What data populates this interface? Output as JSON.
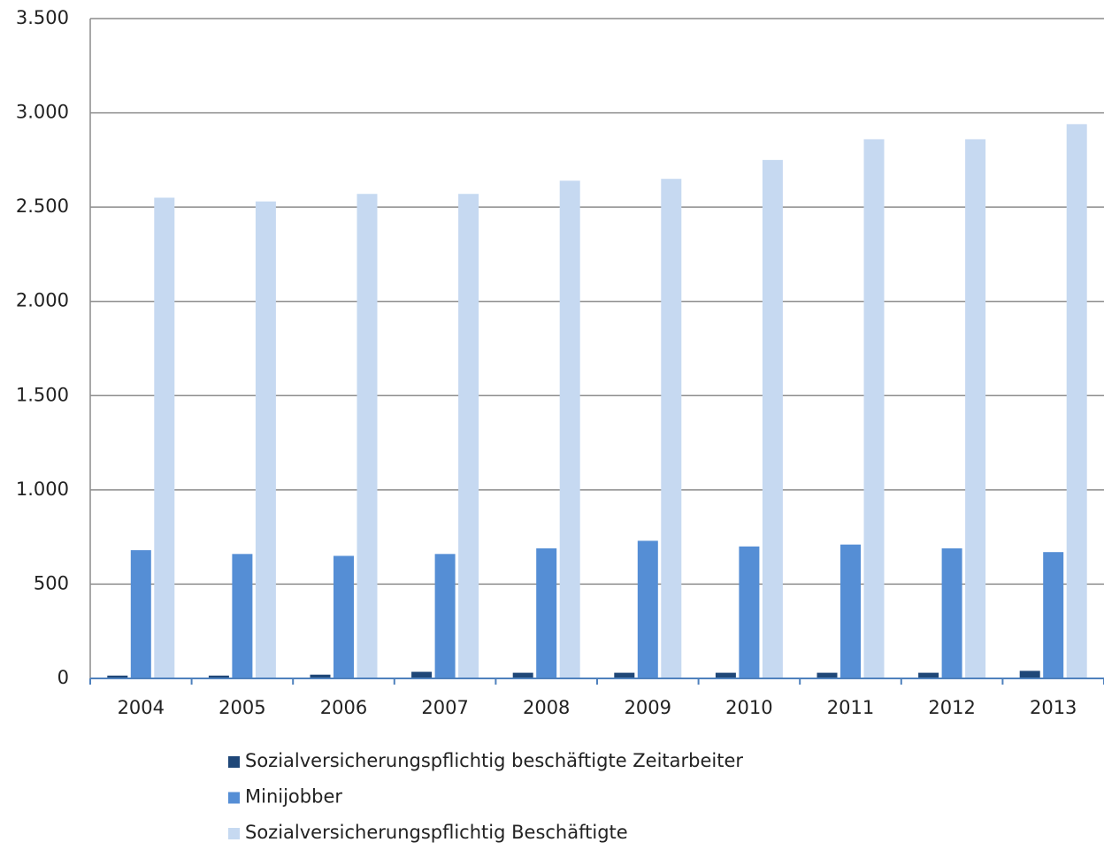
{
  "chart_data": {
    "type": "bar",
    "categories": [
      "2004",
      "2005",
      "2006",
      "2007",
      "2008",
      "2009",
      "2010",
      "2011",
      "2012",
      "2013"
    ],
    "series": [
      {
        "name": "Sozialversicherungspflichtig beschäftigte Zeitarbeiter",
        "color": "#1f4778",
        "values": [
          15,
          15,
          20,
          35,
          30,
          30,
          30,
          30,
          30,
          40
        ]
      },
      {
        "name": "Minijobber",
        "color": "#558ed5",
        "values": [
          680,
          660,
          650,
          660,
          690,
          730,
          700,
          710,
          690,
          670
        ]
      },
      {
        "name": "Sozialversicherungspflichtig Beschäftigte",
        "color": "#c6d9f1",
        "values": [
          2550,
          2530,
          2570,
          2570,
          2640,
          2650,
          2750,
          2860,
          2860,
          2940
        ]
      }
    ],
    "ylim": [
      0,
      3500
    ],
    "yticks": [
      0,
      500,
      {
        "value": 1000,
        "label": "1.000"
      },
      {
        "value": 1500,
        "label": "1.500"
      },
      {
        "value": 2000,
        "label": "2.000"
      },
      {
        "value": 2500,
        "label": "2.500"
      },
      {
        "value": 3000,
        "label": "3.000"
      },
      {
        "value": 3500,
        "label": "3.500"
      }
    ],
    "grid": true
  }
}
